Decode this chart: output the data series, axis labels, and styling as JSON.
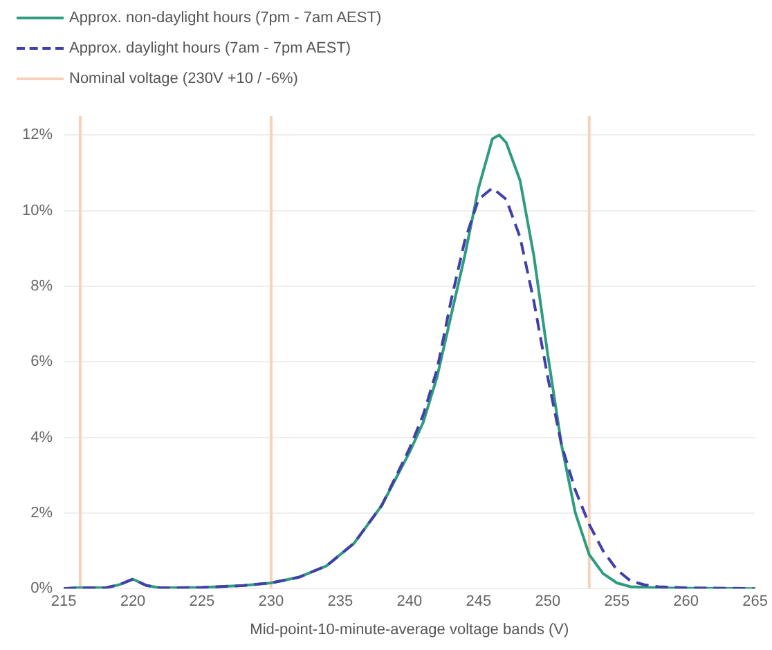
{
  "chart_data": {
    "type": "line",
    "xlabel": "Mid-point-10-minute-average voltage bands (V)",
    "xlim": [
      215,
      265
    ],
    "xticks": [
      215,
      220,
      225,
      230,
      235,
      240,
      245,
      250,
      255,
      260,
      265
    ],
    "ylim": [
      0,
      12.5
    ],
    "yticks": [
      {
        "value": 0,
        "label": "0%"
      },
      {
        "value": 2,
        "label": "2%"
      },
      {
        "value": 4,
        "label": "4%"
      },
      {
        "value": 6,
        "label": "6%"
      },
      {
        "value": 8,
        "label": "8%"
      },
      {
        "value": 10,
        "label": "10%"
      },
      {
        "value": 12,
        "label": "12%"
      }
    ],
    "grid": "y",
    "legend": "top left",
    "marker": "none",
    "series": [
      {
        "name": "Approx. non-daylight hours (7pm - 7am AEST)",
        "color": "#2e9c7f",
        "line_style": "solid",
        "x": [
          215,
          216,
          218,
          219,
          220,
          221,
          222,
          225,
          228,
          230,
          232,
          234,
          236,
          238,
          240,
          241,
          242,
          243,
          244,
          245,
          246,
          246.5,
          247,
          248,
          249,
          250,
          251,
          252,
          253,
          254,
          255,
          256,
          258,
          260,
          265
        ],
        "values": [
          0,
          0.02,
          0.02,
          0.1,
          0.25,
          0.08,
          0.02,
          0.03,
          0.08,
          0.15,
          0.3,
          0.6,
          1.2,
          2.2,
          3.6,
          4.4,
          5.6,
          7.2,
          8.8,
          10.6,
          11.9,
          12,
          11.8,
          10.8,
          8.8,
          6.2,
          3.8,
          2,
          0.9,
          0.4,
          0.15,
          0.05,
          0.02,
          0.01,
          0
        ]
      },
      {
        "name": "Approx. daylight hours (7am - 7pm AEST)",
        "color": "#4040a8",
        "line_style": "dashed",
        "x": [
          215,
          216,
          218,
          219,
          220,
          221,
          222,
          225,
          228,
          230,
          232,
          234,
          236,
          238,
          240,
          241,
          242,
          243,
          244,
          245,
          246,
          247,
          248,
          249,
          250,
          251,
          252,
          253,
          254,
          255,
          256,
          257,
          258,
          260,
          265
        ],
        "values": [
          0,
          0.02,
          0.02,
          0.1,
          0.25,
          0.08,
          0.02,
          0.03,
          0.08,
          0.15,
          0.3,
          0.6,
          1.2,
          2.2,
          3.7,
          4.6,
          5.8,
          7.6,
          9.2,
          10.3,
          10.6,
          10.3,
          9.3,
          7.6,
          5.6,
          3.8,
          2.6,
          1.7,
          1,
          0.5,
          0.2,
          0.1,
          0.05,
          0.02,
          0
        ]
      }
    ],
    "ref_lines": [
      {
        "axis": "x",
        "value": 216.2,
        "label": "Nominal voltage (230V +10 / -6%)",
        "color": "#f7d2b8",
        "line_style": "solid"
      },
      {
        "axis": "x",
        "value": 230,
        "color": "#f7d2b8",
        "line_style": "solid"
      },
      {
        "axis": "x",
        "value": 253,
        "color": "#f7d2b8",
        "line_style": "solid"
      }
    ]
  }
}
